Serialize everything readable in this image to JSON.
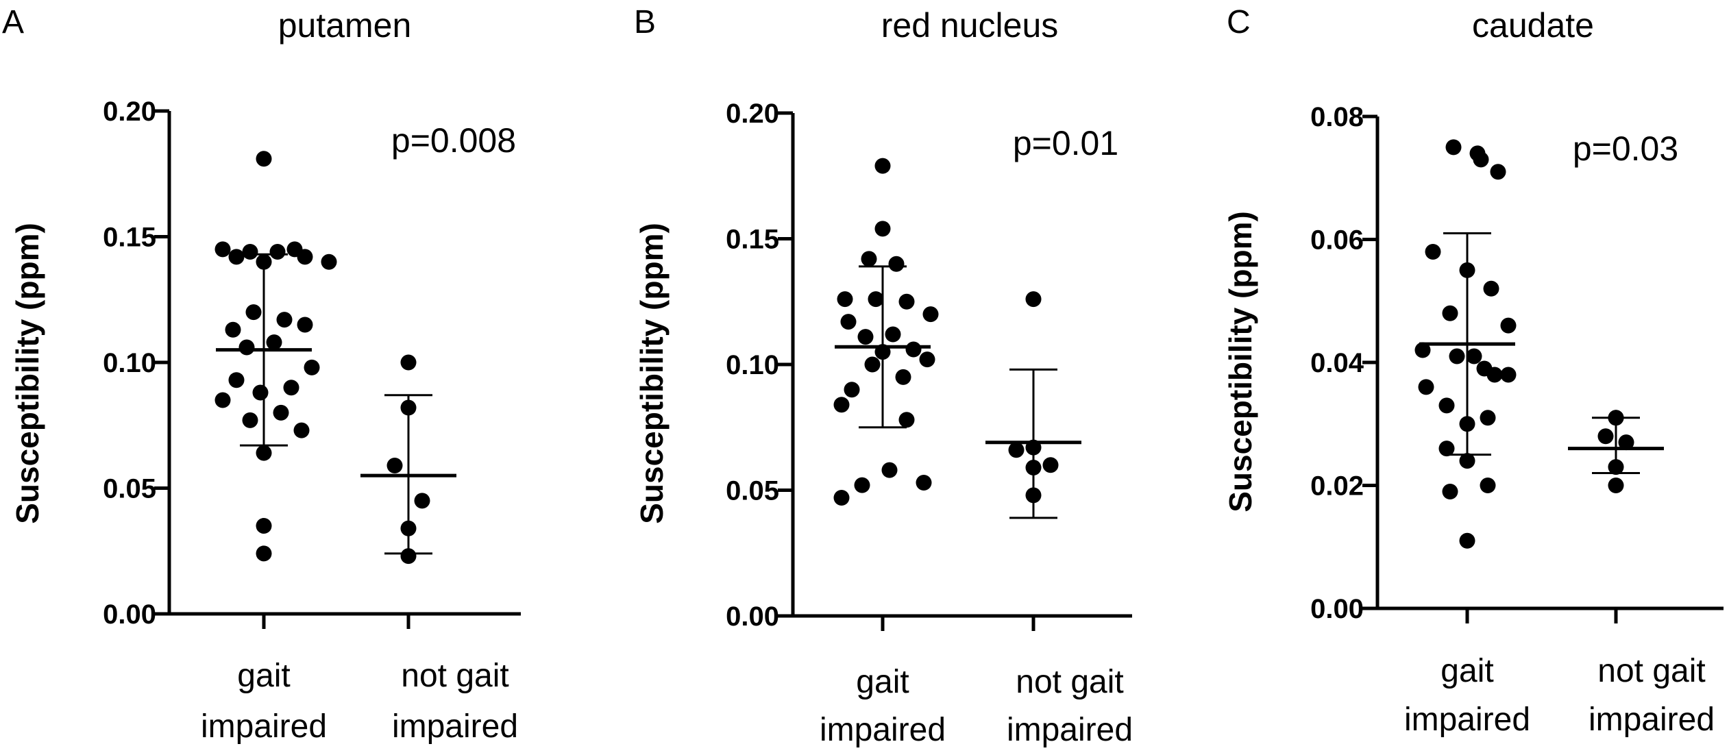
{
  "chart_data": [
    {
      "type": "scatter",
      "panel_letter": "A",
      "title": "putamen",
      "ylabel": "Susceptibility (ppm)",
      "ylim": [
        0,
        0.2
      ],
      "yticks": [
        "0.00",
        "0.05",
        "0.10",
        "0.15",
        "0.20"
      ],
      "annotation": "p=0.008",
      "categories": [
        {
          "line1": "gait",
          "line2": "impaired",
          "mean": 0.105,
          "sd_low": 0.067,
          "sd_high": 0.143,
          "points": [
            0.181,
            0.145,
            0.145,
            0.144,
            0.144,
            0.142,
            0.142,
            0.14,
            0.14,
            0.12,
            0.117,
            0.115,
            0.113,
            0.108,
            0.106,
            0.098,
            0.093,
            0.09,
            0.088,
            0.085,
            0.08,
            0.077,
            0.073,
            0.064,
            0.035,
            0.024
          ]
        },
        {
          "line1": "not gait",
          "line2": "impaired",
          "mean": 0.055,
          "sd_low": 0.024,
          "sd_high": 0.087,
          "points": [
            0.1,
            0.082,
            0.059,
            0.045,
            0.034,
            0.023
          ]
        }
      ]
    },
    {
      "type": "scatter",
      "panel_letter": "B",
      "title": "red nucleus",
      "ylabel": "Susceptibility (ppm)",
      "ylim": [
        0,
        0.2
      ],
      "yticks": [
        "0.00",
        "0.05",
        "0.10",
        "0.15",
        "0.20"
      ],
      "annotation": "p=0.01",
      "categories": [
        {
          "line1": "gait",
          "line2": "impaired",
          "mean": 0.107,
          "sd_low": 0.075,
          "sd_high": 0.139,
          "points": [
            0.179,
            0.154,
            0.142,
            0.14,
            0.126,
            0.126,
            0.125,
            0.12,
            0.117,
            0.112,
            0.111,
            0.106,
            0.105,
            0.102,
            0.1,
            0.095,
            0.09,
            0.084,
            0.078,
            0.058,
            0.052,
            0.053,
            0.047
          ]
        },
        {
          "line1": "not gait",
          "line2": "impaired",
          "mean": 0.069,
          "sd_low": 0.039,
          "sd_high": 0.098,
          "points": [
            0.126,
            0.067,
            0.066,
            0.06,
            0.059,
            0.048
          ]
        }
      ]
    },
    {
      "type": "scatter",
      "panel_letter": "C",
      "title": "caudate",
      "ylabel": "Susceptibility (ppm)",
      "ylim": [
        0,
        0.08
      ],
      "yticks": [
        "0.00",
        "0.02",
        "0.04",
        "0.06",
        "0.08"
      ],
      "annotation": "p=0.03",
      "categories": [
        {
          "line1": "gait",
          "line2": "impaired",
          "mean": 0.043,
          "sd_low": 0.025,
          "sd_high": 0.061,
          "points": [
            0.075,
            0.074,
            0.073,
            0.071,
            0.058,
            0.055,
            0.052,
            0.048,
            0.046,
            0.042,
            0.041,
            0.041,
            0.039,
            0.038,
            0.038,
            0.036,
            0.033,
            0.031,
            0.03,
            0.026,
            0.024,
            0.02,
            0.019,
            0.011
          ]
        },
        {
          "line1": "not gait",
          "line2": "impaired",
          "mean": 0.026,
          "sd_low": 0.022,
          "sd_high": 0.031,
          "points": [
            0.031,
            0.031,
            0.028,
            0.027,
            0.023,
            0.02
          ]
        }
      ]
    }
  ]
}
